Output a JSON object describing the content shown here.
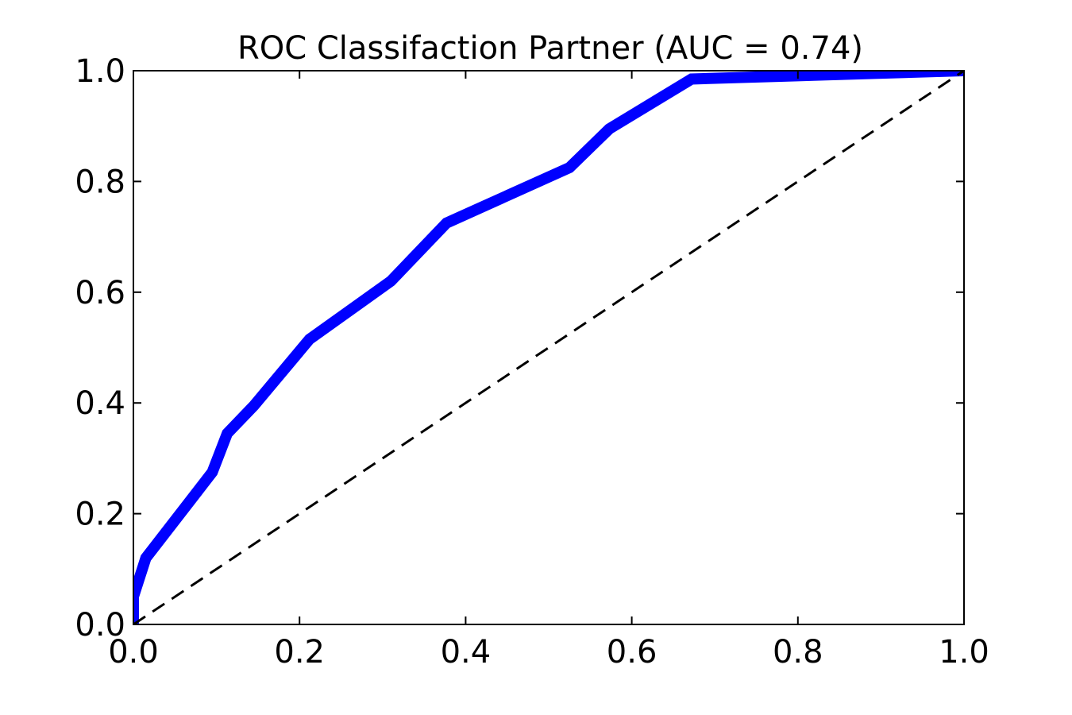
{
  "chart_data": {
    "type": "line",
    "title": "ROC Classifaction Partner (AUC = 0.74)",
    "xlabel": "",
    "ylabel": "",
    "xlim": [
      0.0,
      1.0
    ],
    "ylim": [
      0.0,
      1.0
    ],
    "xticks": [
      "0.0",
      "0.2",
      "0.4",
      "0.6",
      "0.8",
      "1.0"
    ],
    "yticks": [
      "0.0",
      "0.2",
      "0.4",
      "0.6",
      "0.8",
      "1.0"
    ],
    "grid": false,
    "legend": "none",
    "series": [
      {
        "color": "#0000ff",
        "style": "solid",
        "x": [
          0.0,
          0.0,
          0.015,
          0.095,
          0.113,
          0.145,
          0.212,
          0.31,
          0.377,
          0.525,
          0.573,
          0.672,
          1.0
        ],
        "y": [
          0.0,
          0.05,
          0.12,
          0.275,
          0.345,
          0.395,
          0.515,
          0.62,
          0.725,
          0.825,
          0.895,
          0.985,
          1.0
        ]
      },
      {
        "color": "#000000",
        "style": "dashed",
        "x": [
          0.0,
          1.0
        ],
        "y": [
          0.0,
          1.0
        ]
      }
    ]
  }
}
